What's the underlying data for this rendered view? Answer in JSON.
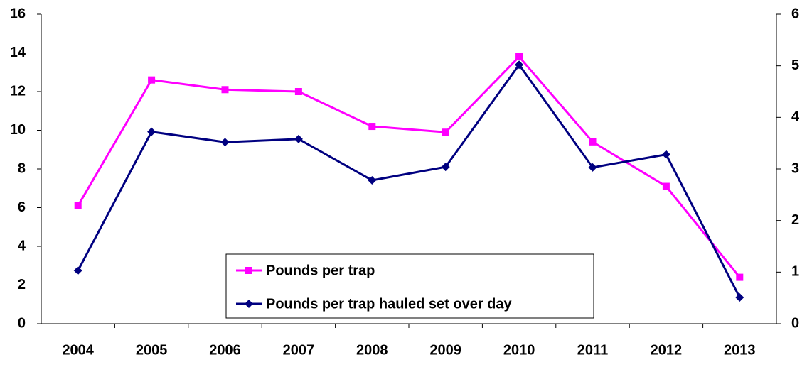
{
  "chart_data": {
    "type": "line",
    "categories": [
      "2004",
      "2005",
      "2006",
      "2007",
      "2008",
      "2009",
      "2010",
      "2011",
      "2012",
      "2013"
    ],
    "series": [
      {
        "name": "Pounds per trap",
        "color": "#ff00ff",
        "marker": "square",
        "axis": "y",
        "values": [
          6.1,
          12.6,
          12.1,
          12.0,
          10.2,
          9.9,
          13.8,
          9.4,
          7.1,
          2.4
        ]
      },
      {
        "name": "Pounds per trap hauled set over day",
        "color": "#000080",
        "marker": "diamond",
        "axis": "y2",
        "values": [
          1.03,
          3.72,
          3.52,
          3.58,
          2.78,
          3.04,
          5.02,
          3.03,
          3.28,
          0.51
        ]
      }
    ],
    "ylim": [
      0,
      16
    ],
    "yticks": [
      0,
      2,
      4,
      6,
      8,
      10,
      12,
      14,
      16
    ],
    "y2lim": [
      0,
      6
    ],
    "y2ticks": [
      0,
      1,
      2,
      3,
      4,
      5,
      6
    ],
    "grid": false,
    "legend": "lower center"
  }
}
